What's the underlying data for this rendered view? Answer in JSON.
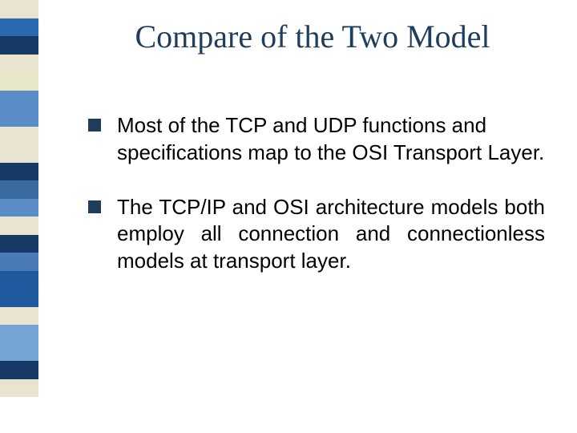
{
  "slide": {
    "title": "Compare of the Two Model",
    "title_color": "#1f3d5c",
    "title_fontsize": 40,
    "background_color": "#ffffff",
    "sidebar_colors": [
      "#e8e4cf",
      "#2a6ab0",
      "#163a66",
      "#e8e4cf",
      "#e8e8c8",
      "#5a8cc7",
      "#5a8cc7",
      "#e8e4cf",
      "#e8e4cf",
      "#163a66",
      "#3a6aa0",
      "#5a8cc7",
      "#e8e4cf",
      "#163a66",
      "#4a7ab8",
      "#1f5a9e",
      "#1f5a9e",
      "#e8e4cf",
      "#74a4d4",
      "#74a4d4",
      "#163a66",
      "#e8e4cf",
      "#ffffff",
      "#ffffff"
    ],
    "bullets": [
      {
        "text": "Most of the TCP and UDP functions and specifications map to the OSI Transport Layer.",
        "justify": false,
        "marker_color": "#1f3d5c"
      },
      {
        "text": "The TCP/IP and OSI architecture models both employ all connection and connectionless models at transport layer.",
        "justify": true,
        "marker_color": "#1f3d5c"
      }
    ],
    "body_fontsize": 26,
    "body_color": "#000000"
  }
}
